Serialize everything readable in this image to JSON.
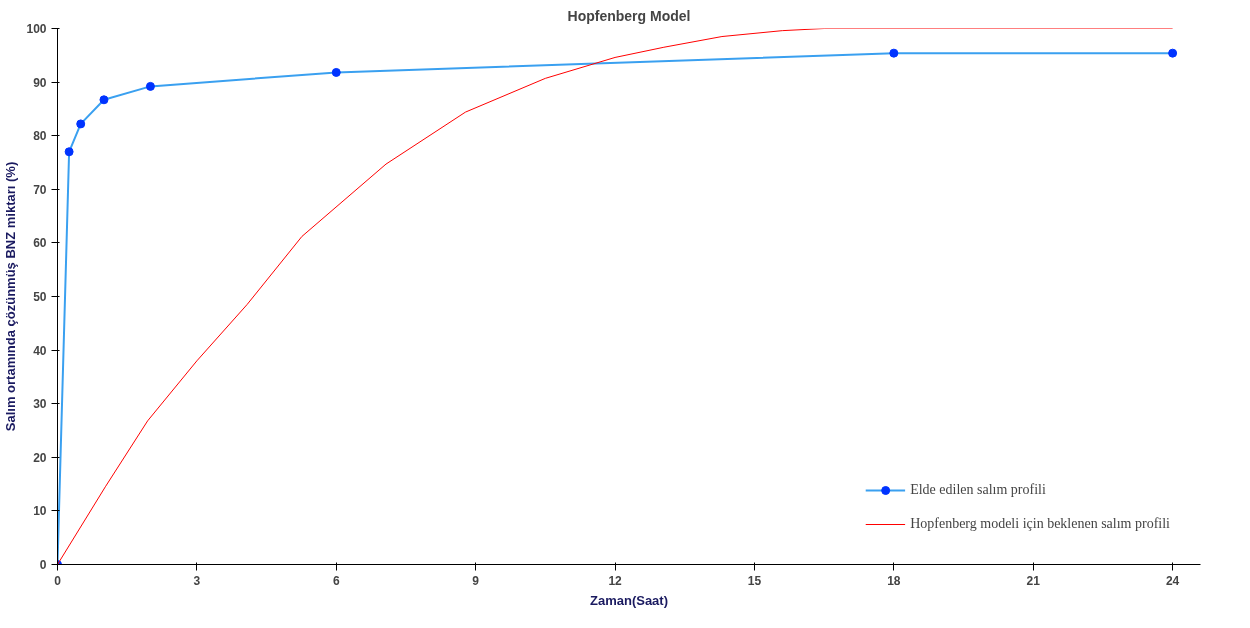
{
  "chart_data": {
    "type": "line",
    "title": "Hopfenberg Model",
    "xlabel": "Zaman(Saat)",
    "ylabel": "Salım ortamında çözünmüş BNZ miktarı (%)",
    "xlim": [
      0,
      24.6
    ],
    "xticks": [
      0,
      3,
      6,
      9,
      12,
      15,
      18,
      21,
      24
    ],
    "ylim": [
      0,
      100
    ],
    "yticks": [
      0,
      10,
      20,
      30,
      40,
      50,
      60,
      70,
      80,
      90,
      100
    ],
    "grid": false,
    "legend": "bottom right",
    "series": [
      {
        "name": "Elde edilen salım profili",
        "color": "#3aa0f0",
        "marker": "circle",
        "x": [
          0,
          0.25,
          0.5,
          1,
          2,
          6,
          18,
          24
        ],
        "values": [
          0,
          77,
          82.2,
          86.7,
          89.2,
          91.8,
          95.4,
          95.4
        ]
      },
      {
        "name": "Hopfenberg modeli için beklenen salım profili",
        "color": "#ff0000",
        "marker": "none",
        "x": [
          0,
          1.03,
          1.94,
          3.0,
          4.08,
          5.26,
          7.07,
          8.78,
          10.5,
          12,
          13.05,
          14.3,
          15.6,
          16.5,
          24
        ],
        "values": [
          0,
          14.5,
          26.8,
          38,
          48.5,
          61.2,
          74.7,
          84.4,
          90.7,
          94.6,
          96.5,
          98.5,
          99.6,
          100,
          100
        ]
      }
    ]
  }
}
